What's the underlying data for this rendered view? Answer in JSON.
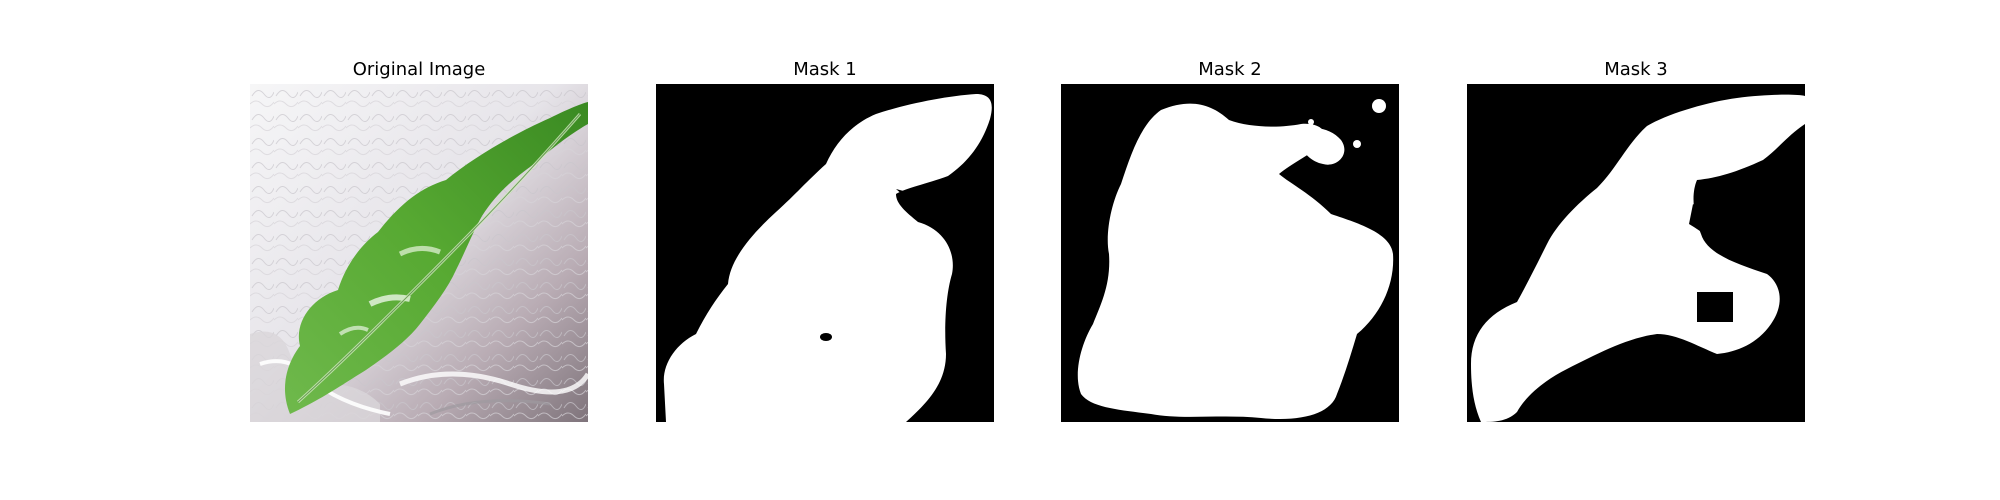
{
  "panels": [
    {
      "title": "Original Image",
      "kind": "photo",
      "subject": "green leaf on textured gray-white background"
    },
    {
      "title": "Mask 1",
      "kind": "binary-mask",
      "foreground_color": "#ffffff",
      "background_color": "#000000"
    },
    {
      "title": "Mask 2",
      "kind": "binary-mask",
      "foreground_color": "#ffffff",
      "background_color": "#000000"
    },
    {
      "title": "Mask 3",
      "kind": "binary-mask",
      "foreground_color": "#ffffff",
      "background_color": "#000000"
    }
  ],
  "colors": {
    "leaf_green": "#5aa832",
    "leaf_dark": "#3c7d22",
    "background_light": "#e8e6ea",
    "background_shadow": "#8c7f86"
  }
}
